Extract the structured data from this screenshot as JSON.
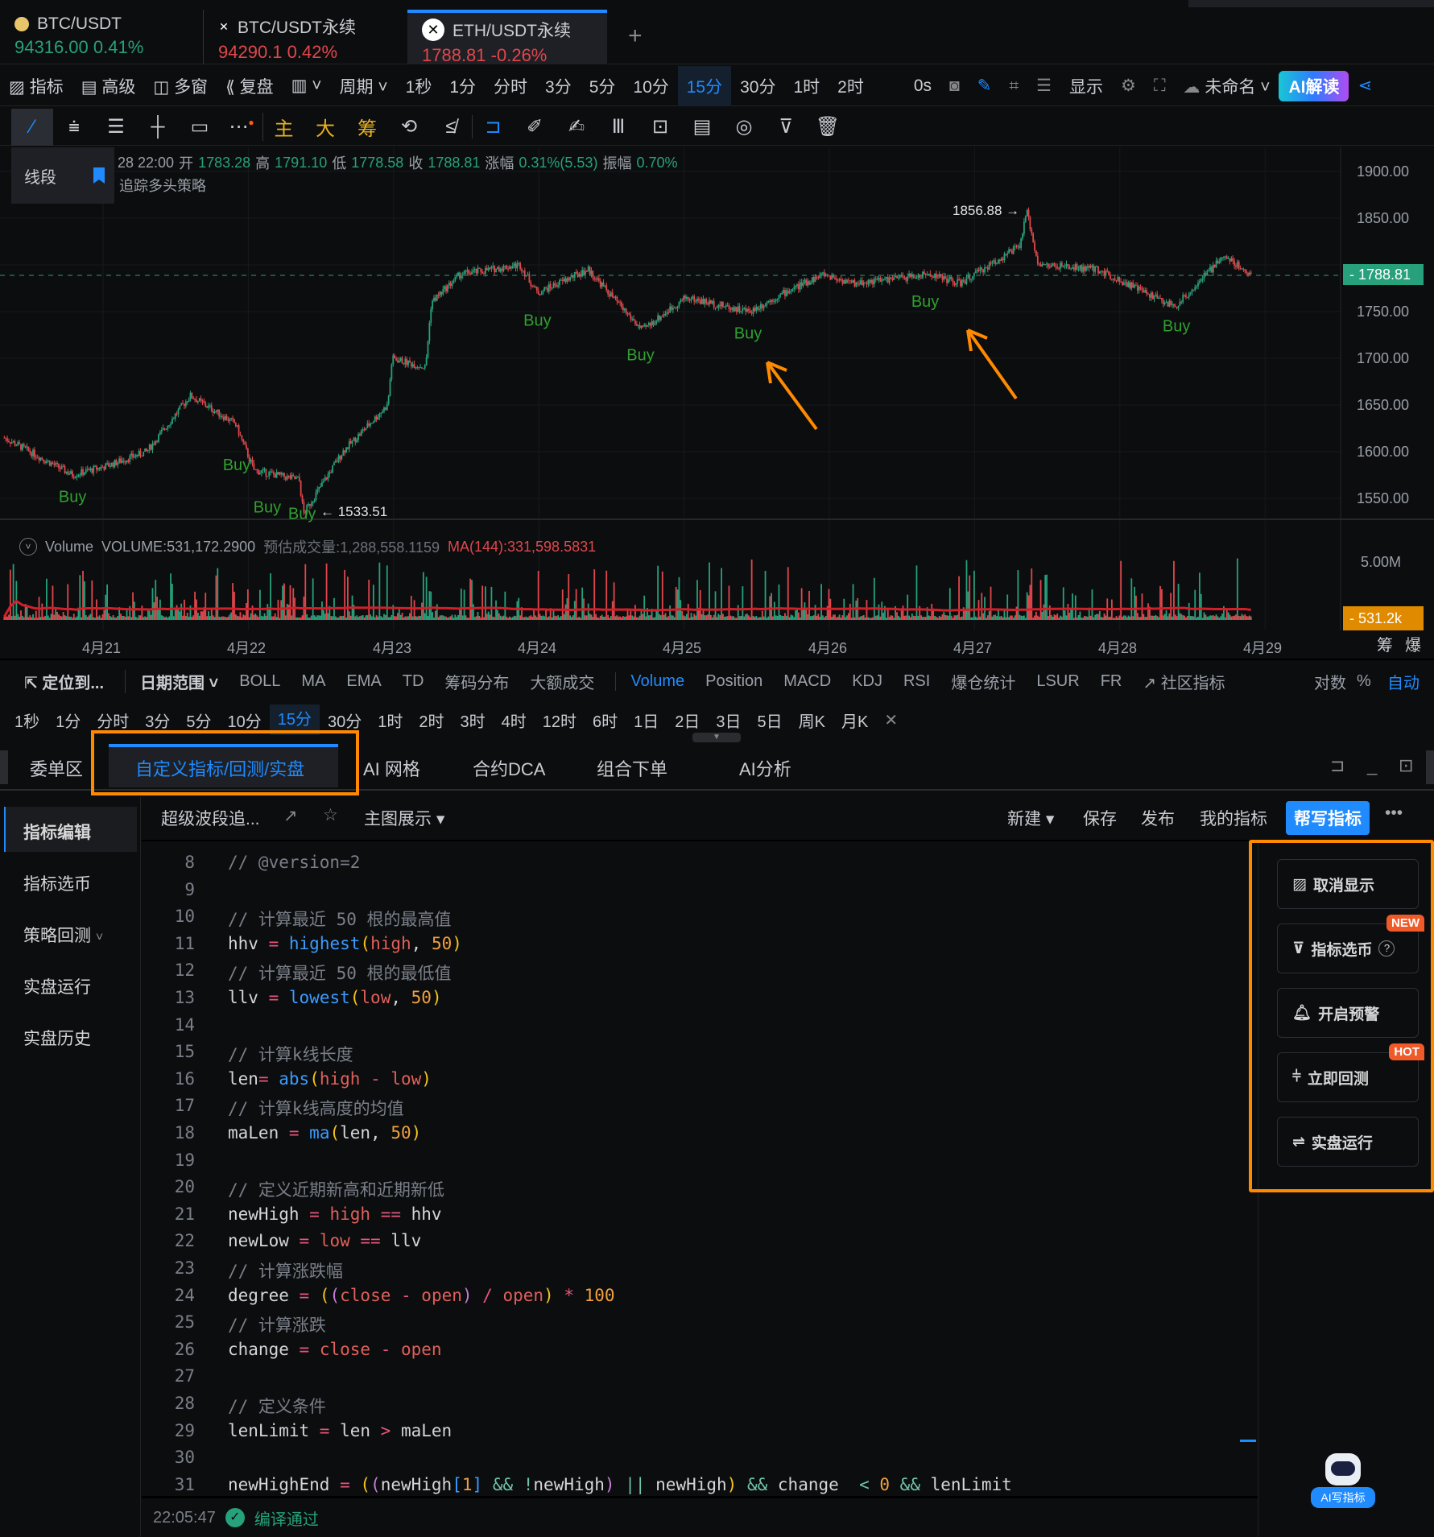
{
  "symbol_tabs": [
    {
      "name": "BTC/USDT",
      "price": "94316.00",
      "change": "0.41%",
      "color": "#26a17b"
    },
    {
      "name": "BTC/USDT永续",
      "price": "94290.1",
      "change": "0.42%",
      "color": "#e0474c"
    },
    {
      "name": "ETH/USDT永续",
      "price": "1788.81",
      "change": "-0.26%",
      "color": "#e0474c",
      "active": true
    }
  ],
  "toolbar": {
    "items": [
      "指标",
      "高级",
      "多窗",
      "复盘"
    ],
    "period_label": "周期",
    "periods": [
      "1秒",
      "1分",
      "分时",
      "3分",
      "5分",
      "10分",
      "15分",
      "30分",
      "1时",
      "2时"
    ],
    "selected_period": "15分",
    "countdown": "0s",
    "display_label": "显示",
    "layout_name": "未命名",
    "ai_button": "AI解读"
  },
  "drawing_tools": {
    "main": "主",
    "big": "大",
    "chip": "筹"
  },
  "chart": {
    "ohlc_line": {
      "time": "28 22:00",
      "open_label": "开",
      "open": "1783.28",
      "high_label": "高",
      "high": "1791.10",
      "low_label": "低",
      "low": "1778.58",
      "close_label": "收",
      "close": "1788.81",
      "chg_label": "涨幅",
      "chg": "0.31%(5.53)",
      "amp_label": "振幅",
      "amp": "0.70%"
    },
    "tool_popup": "线段",
    "strategy_name": "追踪多头策略",
    "current_price": "1788.81",
    "high_marker": "1856.88 →",
    "low_marker": "← 1533.51",
    "y_ticks": [
      "1900.00",
      "1850.00",
      "1750.00",
      "1700.00",
      "1650.00",
      "1600.00",
      "1550.00"
    ],
    "x_ticks": [
      "4月21",
      "4月22",
      "4月23",
      "4月24",
      "4月25",
      "4月26",
      "4月27",
      "4月28",
      "4月29"
    ],
    "buy_label": "Buy",
    "volume": {
      "label": "Volume",
      "value": "VOLUME:531,172.2900",
      "est": "预估成交量:1,288,558.1159",
      "ma": "MA(144):331,598.5831",
      "tick": "5.00M",
      "current": "531.2k"
    },
    "axis_buttons": [
      "筹",
      "爆"
    ],
    "colors": {
      "up": "#26a17b",
      "down": "#e0474c",
      "buy": "#2fa02f",
      "annotation": "#ff8a00"
    }
  },
  "chart_data": {
    "type": "candlestick",
    "x_unit": "day of April",
    "price_path": [
      [
        20.32,
        1615
      ],
      [
        20.79,
        1575
      ],
      [
        21.03,
        1585
      ],
      [
        21.3,
        1600
      ],
      [
        21.6,
        1660
      ],
      [
        21.91,
        1630
      ],
      [
        22.04,
        1580
      ],
      [
        22.35,
        1570
      ],
      [
        22.38,
        1533.51
      ],
      [
        22.65,
        1600
      ],
      [
        22.96,
        1650
      ],
      [
        22.99,
        1700
      ],
      [
        23.22,
        1690
      ],
      [
        23.26,
        1760
      ],
      [
        23.46,
        1790
      ],
      [
        23.87,
        1800
      ],
      [
        23.99,
        1770
      ],
      [
        24.34,
        1795
      ],
      [
        24.71,
        1730
      ],
      [
        25.01,
        1765
      ],
      [
        25.45,
        1750
      ],
      [
        25.69,
        1770
      ],
      [
        25.96,
        1790
      ],
      [
        26.16,
        1780
      ],
      [
        26.7,
        1790
      ],
      [
        26.9,
        1780
      ],
      [
        27.31,
        1820
      ],
      [
        27.36,
        1856.88
      ],
      [
        27.44,
        1800
      ],
      [
        27.85,
        1795
      ],
      [
        28.38,
        1755
      ],
      [
        28.72,
        1810
      ],
      [
        28.91,
        1788.81
      ]
    ],
    "buy_signals": [
      [
        20.79,
        1546
      ],
      [
        21.92,
        1580
      ],
      [
        22.13,
        1535
      ],
      [
        22.37,
        1528
      ],
      [
        23.99,
        1735
      ],
      [
        24.7,
        1698
      ],
      [
        25.44,
        1721
      ],
      [
        26.66,
        1755
      ],
      [
        28.39,
        1729
      ]
    ],
    "ylim": [
      1520,
      1920
    ],
    "xlim": [
      20.3,
      29.25
    ]
  },
  "indicator_bar": {
    "locate": "定位到...",
    "date_range": "日期范围",
    "main_indicators": [
      "BOLL",
      "MA",
      "EMA",
      "TD",
      "筹码分布",
      "大额成交"
    ],
    "sub_indicators": [
      "Volume",
      "Position",
      "MACD",
      "KDJ",
      "RSI",
      "爆仓统计",
      "LSUR",
      "FR"
    ],
    "active_sub": "Volume",
    "community": "社区指标",
    "right": [
      "对数",
      "%",
      "自动"
    ]
  },
  "period_bar": [
    "1秒",
    "1分",
    "分时",
    "3分",
    "5分",
    "10分",
    "15分",
    "30分",
    "1时",
    "2时",
    "3时",
    "4时",
    "12时",
    "6时",
    "1日",
    "2日",
    "3日",
    "5日",
    "周K",
    "月K"
  ],
  "bottom_tabs": [
    "委单区",
    "自定义指标/回测/实盘",
    "AI 网格",
    "合约DCA",
    "组合下单",
    "AI分析"
  ],
  "active_bottom_tab": "自定义指标/回测/实盘",
  "sidebar": [
    "指标编辑",
    "指标选币",
    "策略回测",
    "实盘运行",
    "实盘历史"
  ],
  "editor_toolbar": {
    "script_name": "超级波段追...",
    "display_mode": "主图展示",
    "new": "新建",
    "save": "保存",
    "publish": "发布",
    "my": "我的指标",
    "help": "帮写指标"
  },
  "code": [
    {
      "n": "8",
      "t": [
        [
          "// @version=2",
          "c"
        ]
      ]
    },
    {
      "n": "9",
      "t": []
    },
    {
      "n": "10",
      "t": [
        [
          "// 计算最近 50 根的最高值",
          "c"
        ]
      ]
    },
    {
      "n": "11",
      "t": [
        [
          "hhv ",
          "t"
        ],
        [
          "=",
          "o"
        ],
        [
          " ",
          "t"
        ],
        [
          "highest",
          "k"
        ],
        [
          "(",
          "p"
        ],
        [
          "high",
          "v"
        ],
        [
          ", ",
          "t"
        ],
        [
          "50",
          "n"
        ],
        [
          ")",
          "p"
        ]
      ]
    },
    {
      "n": "12",
      "t": [
        [
          "// 计算最近 50 根的最低值",
          "c"
        ]
      ]
    },
    {
      "n": "13",
      "t": [
        [
          "llv ",
          "t"
        ],
        [
          "=",
          "o"
        ],
        [
          " ",
          "t"
        ],
        [
          "lowest",
          "k"
        ],
        [
          "(",
          "p"
        ],
        [
          "low",
          "v"
        ],
        [
          ", ",
          "t"
        ],
        [
          "50",
          "n"
        ],
        [
          ")",
          "p"
        ]
      ]
    },
    {
      "n": "14",
      "t": []
    },
    {
      "n": "15",
      "t": [
        [
          "// 计算k线长度",
          "c"
        ]
      ]
    },
    {
      "n": "16",
      "t": [
        [
          "len",
          "t"
        ],
        [
          "=",
          "o"
        ],
        [
          " ",
          "t"
        ],
        [
          "abs",
          "k"
        ],
        [
          "(",
          "p"
        ],
        [
          "high",
          "v"
        ],
        [
          " - ",
          "o"
        ],
        [
          "low",
          "v"
        ],
        [
          ")",
          "p"
        ]
      ]
    },
    {
      "n": "17",
      "t": [
        [
          "// 计算k线高度的均值",
          "c"
        ]
      ]
    },
    {
      "n": "18",
      "t": [
        [
          "maLen ",
          "t"
        ],
        [
          "=",
          "o"
        ],
        [
          " ",
          "t"
        ],
        [
          "ma",
          "k"
        ],
        [
          "(",
          "p"
        ],
        [
          "len, ",
          "t"
        ],
        [
          "50",
          "n"
        ],
        [
          ")",
          "p"
        ]
      ]
    },
    {
      "n": "19",
      "t": []
    },
    {
      "n": "20",
      "t": [
        [
          "// 定义近期新高和近期新低",
          "c"
        ]
      ]
    },
    {
      "n": "21",
      "t": [
        [
          "newHigh ",
          "t"
        ],
        [
          "=",
          "o"
        ],
        [
          " ",
          "t"
        ],
        [
          "high",
          "v"
        ],
        [
          " == ",
          "o"
        ],
        [
          "hhv",
          "t"
        ]
      ]
    },
    {
      "n": "22",
      "t": [
        [
          "newLow ",
          "t"
        ],
        [
          "=",
          "o"
        ],
        [
          " ",
          "t"
        ],
        [
          "low",
          "v"
        ],
        [
          " == ",
          "o"
        ],
        [
          "llv",
          "t"
        ]
      ]
    },
    {
      "n": "23",
      "t": [
        [
          "// 计算涨跌幅",
          "c"
        ]
      ]
    },
    {
      "n": "24",
      "t": [
        [
          "degree ",
          "t"
        ],
        [
          "=",
          "o"
        ],
        [
          " ",
          "t"
        ],
        [
          "(",
          "p"
        ],
        [
          "(",
          "m"
        ],
        [
          "close",
          "v"
        ],
        [
          " - ",
          "o"
        ],
        [
          "open",
          "v"
        ],
        [
          ")",
          "m"
        ],
        [
          " / ",
          "o"
        ],
        [
          "open",
          "v"
        ],
        [
          ")",
          "p"
        ],
        [
          " * ",
          "o"
        ],
        [
          "100",
          "n"
        ]
      ]
    },
    {
      "n": "25",
      "t": [
        [
          "// 计算涨跌",
          "c"
        ]
      ]
    },
    {
      "n": "26",
      "t": [
        [
          "change ",
          "t"
        ],
        [
          "=",
          "o"
        ],
        [
          " ",
          "t"
        ],
        [
          "close",
          "v"
        ],
        [
          " - ",
          "o"
        ],
        [
          "open",
          "v"
        ]
      ]
    },
    {
      "n": "27",
      "t": []
    },
    {
      "n": "28",
      "t": [
        [
          "// 定义条件",
          "c"
        ]
      ]
    },
    {
      "n": "29",
      "t": [
        [
          "lenLimit ",
          "t"
        ],
        [
          "=",
          "o"
        ],
        [
          " len ",
          "t"
        ],
        [
          ">",
          "o"
        ],
        [
          " maLen",
          "t"
        ]
      ]
    },
    {
      "n": "30",
      "t": []
    },
    {
      "n": "31",
      "t": [
        [
          "newHighEnd ",
          "t"
        ],
        [
          "=",
          "o"
        ],
        [
          " ",
          "t"
        ],
        [
          "(",
          "p"
        ],
        [
          "(",
          "m"
        ],
        [
          "newHigh",
          "t"
        ],
        [
          "[",
          "b"
        ],
        [
          "1",
          "n"
        ],
        [
          "]",
          "b"
        ],
        [
          " && !",
          "a"
        ],
        [
          "newHigh",
          "t"
        ],
        [
          ")",
          "m"
        ],
        [
          " || ",
          "a"
        ],
        [
          "newHigh",
          "t"
        ],
        [
          ")",
          "p"
        ],
        [
          " && ",
          "a"
        ],
        [
          "change  ",
          "t"
        ],
        [
          "<",
          "a"
        ],
        [
          " ",
          "t"
        ],
        [
          "0",
          "n"
        ],
        [
          " && ",
          "a"
        ],
        [
          "lenLimit",
          "t"
        ]
      ]
    }
  ],
  "status": {
    "time": "22:05:47",
    "message": "编译通过"
  },
  "right_panel": [
    {
      "label": "取消显示",
      "icon": "chart-icon"
    },
    {
      "label": "指标选币",
      "icon": "filter-icon",
      "badge": "NEW"
    },
    {
      "label": "开启预警",
      "icon": "bell-icon"
    },
    {
      "label": "立即回测",
      "icon": "backtest-icon",
      "badge": "HOT"
    },
    {
      "label": "实盘运行",
      "icon": "swap-icon"
    }
  ],
  "ai_assistant": "AI写指标"
}
